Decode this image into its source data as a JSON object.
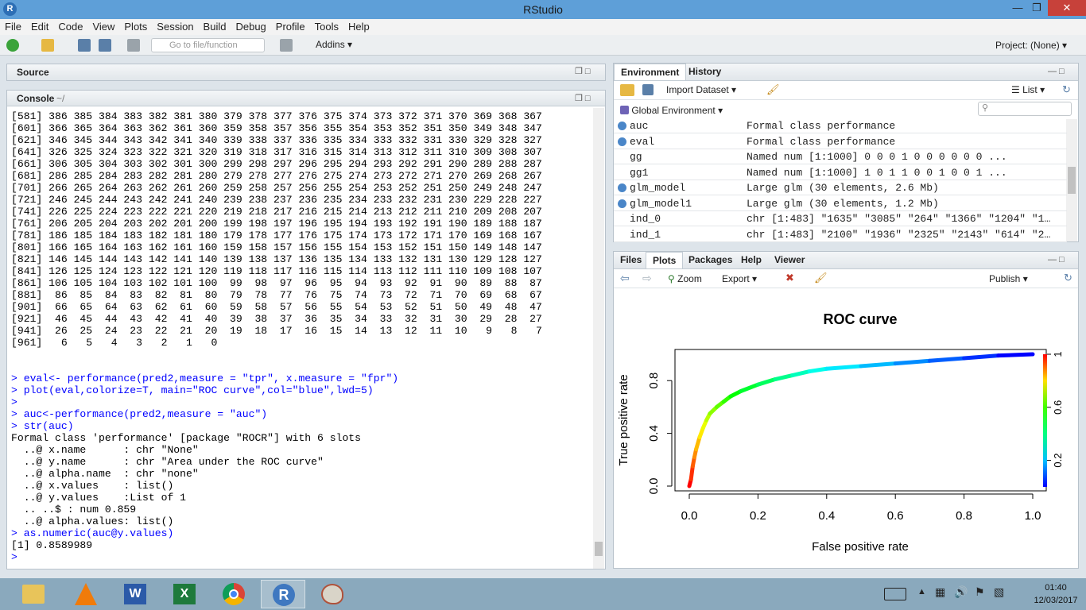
{
  "window": {
    "title": "RStudio"
  },
  "menu": [
    "File",
    "Edit",
    "Code",
    "View",
    "Plots",
    "Session",
    "Build",
    "Debug",
    "Profile",
    "Tools",
    "Help"
  ],
  "toolbar": {
    "goto_placeholder": "Go to file/function",
    "addins": "Addins",
    "project": "Project: (None)"
  },
  "source": {
    "label": "Source"
  },
  "console": {
    "label": "Console",
    "path": "~/",
    "lines": [
      {
        "t": "[581] 386 385 384 383 382 381 380 379 378 377 376 375 374 373 372 371 370 369 368 367"
      },
      {
        "t": "[601] 366 365 364 363 362 361 360 359 358 357 356 355 354 353 352 351 350 349 348 347"
      },
      {
        "t": "[621] 346 345 344 343 342 341 340 339 338 337 336 335 334 333 332 331 330 329 328 327"
      },
      {
        "t": "[641] 326 325 324 323 322 321 320 319 318 317 316 315 314 313 312 311 310 309 308 307"
      },
      {
        "t": "[661] 306 305 304 303 302 301 300 299 298 297 296 295 294 293 292 291 290 289 288 287"
      },
      {
        "t": "[681] 286 285 284 283 282 281 280 279 278 277 276 275 274 273 272 271 270 269 268 267"
      },
      {
        "t": "[701] 266 265 264 263 262 261 260 259 258 257 256 255 254 253 252 251 250 249 248 247"
      },
      {
        "t": "[721] 246 245 244 243 242 241 240 239 238 237 236 235 234 233 232 231 230 229 228 227"
      },
      {
        "t": "[741] 226 225 224 223 222 221 220 219 218 217 216 215 214 213 212 211 210 209 208 207"
      },
      {
        "t": "[761] 206 205 204 203 202 201 200 199 198 197 196 195 194 193 192 191 190 189 188 187"
      },
      {
        "t": "[781] 186 185 184 183 182 181 180 179 178 177 176 175 174 173 172 171 170 169 168 167"
      },
      {
        "t": "[801] 166 165 164 163 162 161 160 159 158 157 156 155 154 153 152 151 150 149 148 147"
      },
      {
        "t": "[821] 146 145 144 143 142 141 140 139 138 137 136 135 134 133 132 131 130 129 128 127"
      },
      {
        "t": "[841] 126 125 124 123 122 121 120 119 118 117 116 115 114 113 112 111 110 109 108 107"
      },
      {
        "t": "[861] 106 105 104 103 102 101 100  99  98  97  96  95  94  93  92  91  90  89  88  87"
      },
      {
        "t": "[881]  86  85  84  83  82  81  80  79  78  77  76  75  74  73  72  71  70  69  68  67"
      },
      {
        "t": "[901]  66  65  64  63  62  61  60  59  58  57  56  55  54  53  52  51  50  49  48  47"
      },
      {
        "t": "[921]  46  45  44  43  42  41  40  39  38  37  36  35  34  33  32  31  30  29  28  27"
      },
      {
        "t": "[941]  26  25  24  23  22  21  20  19  18  17  16  15  14  13  12  11  10   9   8   7"
      },
      {
        "t": "[961]   6   5   4   3   2   1   0"
      },
      {
        "t": ""
      },
      {
        "t": ""
      },
      {
        "t": "> eval<- performance(pred2,measure = \"tpr\", x.measure = \"fpr\")",
        "cmd": true
      },
      {
        "t": "> plot(eval,colorize=T, main=\"ROC curve\",col=\"blue\",lwd=5)",
        "cmd": true
      },
      {
        "t": ">",
        "cmd": true
      },
      {
        "t": "> auc<-performance(pred2,measure = \"auc\")",
        "cmd": true
      },
      {
        "t": "> str(auc)",
        "cmd": true
      },
      {
        "t": "Formal class 'performance' [package \"ROCR\"] with 6 slots"
      },
      {
        "t": "  ..@ x.name      : chr \"None\""
      },
      {
        "t": "  ..@ y.name      : chr \"Area under the ROC curve\""
      },
      {
        "t": "  ..@ alpha.name  : chr \"none\""
      },
      {
        "t": "  ..@ x.values    : list()"
      },
      {
        "t": "  ..@ y.values    :List of 1"
      },
      {
        "t": "  .. ..$ : num 0.859"
      },
      {
        "t": "  ..@ alpha.values: list()"
      },
      {
        "t": "> as.numeric(auc@y.values)",
        "cmd": true
      },
      {
        "t": "[1] 0.8589989"
      },
      {
        "t": "> ",
        "cmd": true
      }
    ]
  },
  "environment": {
    "tabs": [
      "Environment",
      "History"
    ],
    "import_label": "Import Dataset",
    "view_mode": "List",
    "scope": "Global Environment",
    "rows": [
      {
        "name": "auc",
        "value": "Formal class performance",
        "icon": true
      },
      {
        "name": "eval",
        "value": "Formal class performance",
        "icon": true
      },
      {
        "name": "gg",
        "value": "Named num [1:1000] 0 0 0 1 0 0 0 0 0 0 ...",
        "icon": false
      },
      {
        "name": "gg1",
        "value": "Named num [1:1000] 1 0 1 1 0 0 1 0 0 1 ...",
        "icon": false
      },
      {
        "name": "glm_model",
        "value": "Large glm (30 elements, 2.6 Mb)",
        "icon": true
      },
      {
        "name": "glm_model1",
        "value": "Large glm (30 elements, 1.2 Mb)",
        "icon": true
      },
      {
        "name": "ind_0",
        "value": "chr [1:483] \"1635\" \"3085\" \"264\" \"1366\" \"1204\" \"1…",
        "icon": false
      },
      {
        "name": "ind_1",
        "value": "chr [1:483] \"2100\" \"1936\" \"2325\" \"2143\" \"614\" \"2…",
        "icon": false
      }
    ]
  },
  "files": {
    "tabs": [
      "Files",
      "Plots",
      "Packages",
      "Help",
      "Viewer"
    ],
    "zoom": "Zoom",
    "export": "Export",
    "publish": "Publish"
  },
  "chart_data": {
    "type": "line",
    "title": "ROC curve",
    "xlabel": "False positive rate",
    "ylabel": "True positive rate",
    "xlim": [
      0,
      1
    ],
    "ylim": [
      0,
      1
    ],
    "x_ticks": [
      "0.0",
      "0.2",
      "0.4",
      "0.6",
      "0.8",
      "1.0"
    ],
    "y_ticks": [
      "0.0",
      "0.4",
      "0.8"
    ],
    "colorbar_ticks": [
      "1",
      "0.6",
      "0.2"
    ],
    "colorize": true,
    "series": [
      {
        "x": [
          0,
          0.005,
          0.01,
          0.015,
          0.02,
          0.03,
          0.04,
          0.05,
          0.06,
          0.08,
          0.1,
          0.12,
          0.15,
          0.2,
          0.25,
          0.3,
          0.35,
          0.4,
          0.5,
          0.6,
          0.7,
          0.8,
          0.9,
          1.0
        ],
        "y": [
          0,
          0.05,
          0.15,
          0.22,
          0.28,
          0.37,
          0.44,
          0.5,
          0.55,
          0.6,
          0.64,
          0.68,
          0.72,
          0.77,
          0.81,
          0.84,
          0.87,
          0.89,
          0.91,
          0.93,
          0.95,
          0.97,
          0.99,
          1.0
        ]
      }
    ]
  },
  "taskbar": {
    "time": "01:40",
    "date": "12/03/2017",
    "apps": [
      "file-explorer",
      "vlc",
      "word",
      "excel",
      "chrome",
      "rstudio",
      "paint"
    ]
  }
}
